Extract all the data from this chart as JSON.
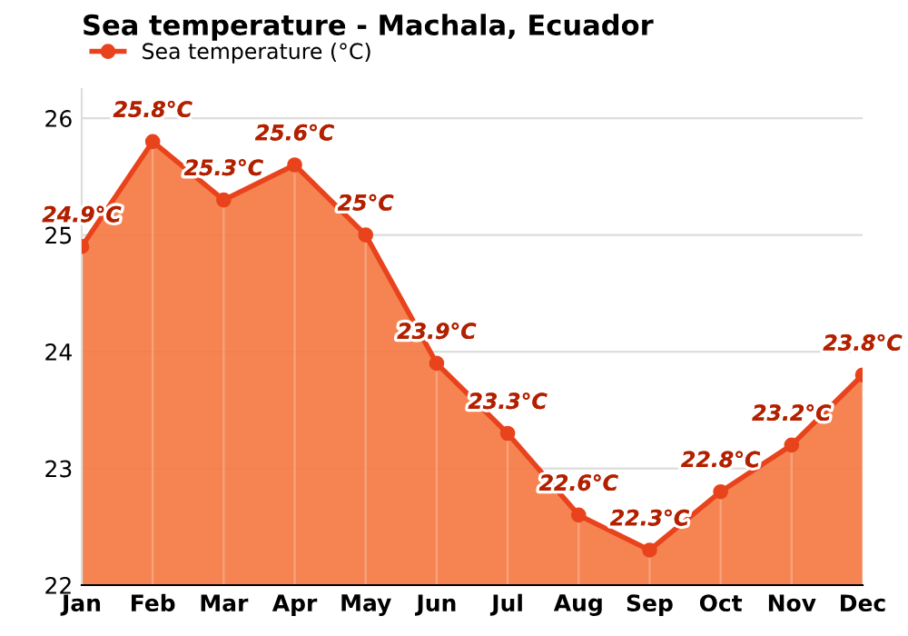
{
  "chart_data": {
    "type": "area",
    "title": "Sea temperature - Machala, Ecuador",
    "categories": [
      "Jan",
      "Feb",
      "Mar",
      "Apr",
      "May",
      "Jun",
      "Jul",
      "Aug",
      "Sep",
      "Oct",
      "Nov",
      "Dec"
    ],
    "series": [
      {
        "name": "Sea temperature (°C)",
        "color": "#e8431c",
        "values": [
          24.9,
          25.8,
          25.3,
          25.6,
          25,
          23.9,
          23.3,
          22.6,
          22.3,
          22.8,
          23.2,
          23.8
        ],
        "value_labels": [
          "24.9°C",
          "25.8°C",
          "25.3°C",
          "25.6°C",
          "25°C",
          "23.9°C",
          "23.3°C",
          "22.6°C",
          "22.3°C",
          "22.8°C",
          "23.2°C",
          "23.8°C"
        ]
      }
    ],
    "ylim": [
      22,
      26.25
    ],
    "yticks": [
      22,
      23,
      24,
      25,
      26
    ],
    "grid": true,
    "legend": "top left",
    "marker": "circle",
    "line_style": "solid"
  }
}
